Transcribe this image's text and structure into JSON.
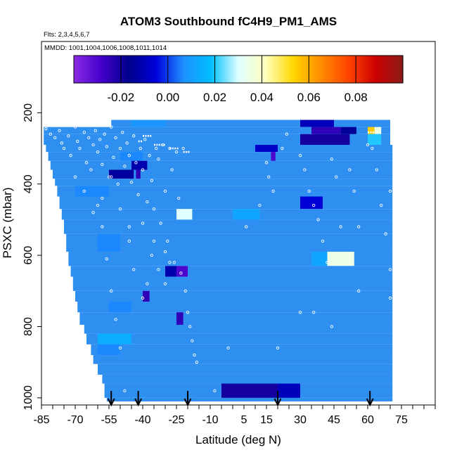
{
  "chart_data": {
    "type": "heatmap",
    "title": "ATOM3 Southbound fC4H9_PM1_AMS",
    "flights_label": "Flts: 2,3,4,5,6,7",
    "dates_label": "MMDD: 1001,1004,1006,1008,1011,1014",
    "xlabel": "Latitude (deg N)",
    "ylabel": "PSXC (mbar)",
    "xlim": [
      -85,
      90
    ],
    "ylim": [
      1020,
      0
    ],
    "x_ticks": [
      -85,
      -70,
      -55,
      -40,
      -25,
      -10,
      5,
      15,
      30,
      45,
      60,
      75
    ],
    "y_ticks": [
      200,
      400,
      600,
      800,
      1000
    ],
    "colorbar": {
      "range": [
        -0.04,
        0.1
      ],
      "ticks": [
        -0.02,
        0.0,
        0.02,
        0.04,
        0.06,
        0.08
      ],
      "tick_labels": [
        "-0.02",
        "0.00",
        "0.02",
        "0.04",
        "0.06",
        "0.08"
      ],
      "colors": [
        "#8a2be2",
        "#4400cc",
        "#00008b",
        "#0000dd",
        "#1e90ff",
        "#00bfff",
        "#e0ffff",
        "#ffffbf",
        "#ffd700",
        "#ff8c00",
        "#ff4500",
        "#cc0000",
        "#8b1a1a"
      ]
    },
    "base_color": "#2e8ff0",
    "layers": [
      {
        "p_top": 220,
        "p_bot": 240,
        "lat_min": -54,
        "lat_max": 70,
        "anomalies": [
          {
            "lat0": -45,
            "lat1": -30,
            "value": 0.008
          },
          {
            "lat0": 30,
            "lat1": 45,
            "value": -0.01
          }
        ]
      },
      {
        "p_top": 240,
        "p_bot": 260,
        "lat_min": -84,
        "lat_max": 70,
        "anomalies": [
          {
            "lat0": 35,
            "lat1": 48,
            "value": -0.025
          },
          {
            "lat0": 48,
            "lat1": 55,
            "value": -0.015
          },
          {
            "lat0": 60,
            "lat1": 63,
            "value": 0.055
          },
          {
            "lat0": 63,
            "lat1": 66,
            "value": 0.035
          }
        ]
      },
      {
        "p_top": 260,
        "p_bot": 290,
        "lat_min": -84,
        "lat_max": 70,
        "anomalies": [
          {
            "lat0": 30,
            "lat1": 52,
            "value": -0.02
          },
          {
            "lat0": 60,
            "lat1": 66,
            "value": 0.02
          }
        ]
      },
      {
        "p_top": 290,
        "p_bot": 310,
        "lat_min": -83,
        "lat_max": 71,
        "anomalies": [
          {
            "lat0": 10,
            "lat1": 20,
            "value": -0.008
          }
        ]
      },
      {
        "p_top": 310,
        "p_bot": 335,
        "lat_min": -82,
        "lat_max": 71,
        "anomalies": [
          {
            "lat0": 17,
            "lat1": 19,
            "value": -0.03
          },
          {
            "lat0": -50,
            "lat1": -40,
            "value": 0.006
          }
        ]
      },
      {
        "p_top": 335,
        "p_bot": 360,
        "lat_min": -81,
        "lat_max": 71,
        "anomalies": [
          {
            "lat0": -45,
            "lat1": -38,
            "value": -0.012
          }
        ]
      },
      {
        "p_top": 360,
        "p_bot": 385,
        "lat_min": -80,
        "lat_max": 71,
        "anomalies": [
          {
            "lat0": -55,
            "lat1": -44,
            "value": -0.014
          },
          {
            "lat0": -43,
            "lat1": -41,
            "value": -0.025
          }
        ]
      },
      {
        "p_top": 385,
        "p_bot": 405,
        "lat_min": -79,
        "lat_max": 71,
        "anomalies": []
      },
      {
        "p_top": 405,
        "p_bot": 435,
        "lat_min": -78,
        "lat_max": 71,
        "anomalies": [
          {
            "lat0": -70,
            "lat1": -55,
            "value": 0.006
          }
        ]
      },
      {
        "p_top": 435,
        "p_bot": 470,
        "lat_min": -77,
        "lat_max": 71,
        "anomalies": [
          {
            "lat0": 30,
            "lat1": 40,
            "value": -0.006
          }
        ]
      },
      {
        "p_top": 470,
        "p_bot": 500,
        "lat_min": -76,
        "lat_max": 71,
        "anomalies": [
          {
            "lat0": -25,
            "lat1": -18,
            "value": 0.03
          },
          {
            "lat0": 0,
            "lat1": 12,
            "value": 0.012
          }
        ]
      },
      {
        "p_top": 500,
        "p_bot": 540,
        "lat_min": -75,
        "lat_max": 71,
        "anomalies": []
      },
      {
        "p_top": 540,
        "p_bot": 590,
        "lat_min": -74,
        "lat_max": 71,
        "anomalies": [
          {
            "lat0": -60,
            "lat1": -50,
            "value": 0.006
          }
        ]
      },
      {
        "p_top": 590,
        "p_bot": 630,
        "lat_min": -73,
        "lat_max": 71,
        "anomalies": [
          {
            "lat0": 42,
            "lat1": 54,
            "value": 0.035
          },
          {
            "lat0": 35,
            "lat1": 42,
            "value": 0.012
          }
        ]
      },
      {
        "p_top": 630,
        "p_bot": 660,
        "lat_min": -72,
        "lat_max": 71,
        "anomalies": [
          {
            "lat0": -25,
            "lat1": -20,
            "value": -0.03
          },
          {
            "lat0": -30,
            "lat1": -25,
            "value": -0.012
          }
        ]
      },
      {
        "p_top": 660,
        "p_bot": 700,
        "lat_min": -71,
        "lat_max": 71,
        "anomalies": []
      },
      {
        "p_top": 700,
        "p_bot": 730,
        "lat_min": -70,
        "lat_max": 71,
        "anomalies": [
          {
            "lat0": -40,
            "lat1": -37,
            "value": -0.025
          }
        ]
      },
      {
        "p_top": 730,
        "p_bot": 760,
        "lat_min": -69,
        "lat_max": 71,
        "anomalies": [
          {
            "lat0": -55,
            "lat1": -45,
            "value": 0.006
          }
        ]
      },
      {
        "p_top": 760,
        "p_bot": 795,
        "lat_min": -68,
        "lat_max": 71,
        "anomalies": [
          {
            "lat0": -25,
            "lat1": -22,
            "value": -0.025
          }
        ]
      },
      {
        "p_top": 795,
        "p_bot": 820,
        "lat_min": -66,
        "lat_max": 71,
        "anomalies": []
      },
      {
        "p_top": 820,
        "p_bot": 850,
        "lat_min": -65,
        "lat_max": 71,
        "anomalies": [
          {
            "lat0": -60,
            "lat1": -45,
            "value": 0.014
          }
        ]
      },
      {
        "p_top": 850,
        "p_bot": 880,
        "lat_min": -63,
        "lat_max": 71,
        "anomalies": [
          {
            "lat0": -60,
            "lat1": -50,
            "value": 0.006
          }
        ]
      },
      {
        "p_top": 880,
        "p_bot": 905,
        "lat_min": -62,
        "lat_max": 71,
        "anomalies": []
      },
      {
        "p_top": 905,
        "p_bot": 935,
        "lat_min": -60,
        "lat_max": 71,
        "anomalies": []
      },
      {
        "p_top": 935,
        "p_bot": 960,
        "lat_min": -58,
        "lat_max": 71,
        "anomalies": []
      },
      {
        "p_top": 960,
        "p_bot": 1000,
        "lat_min": -57,
        "lat_max": 71,
        "anomalies": [
          {
            "lat0": -5,
            "lat1": 20,
            "value": -0.02
          },
          {
            "lat0": 20,
            "lat1": 30,
            "value": -0.01
          }
        ]
      },
      {
        "p_top": 1000,
        "p_bot": 1010,
        "lat_min": -56,
        "lat_max": 71,
        "anomalies": []
      }
    ],
    "arrows_lat": [
      -54,
      -42,
      -20,
      20,
      61
    ],
    "points": [
      [
        -83,
        245
      ],
      [
        -81,
        260
      ],
      [
        -79,
        270
      ],
      [
        -77,
        250
      ],
      [
        -76,
        285
      ],
      [
        -75,
        300
      ],
      [
        -73,
        265
      ],
      [
        -72,
        320
      ],
      [
        -70,
        240
      ],
      [
        -69,
        280
      ],
      [
        -68,
        300
      ],
      [
        -66,
        255
      ],
      [
        -65,
        340
      ],
      [
        -64,
        270
      ],
      [
        -63,
        360
      ],
      [
        -62,
        290
      ],
      [
        -61,
        250
      ],
      [
        -60,
        310
      ],
      [
        -59,
        275
      ],
      [
        -58,
        345
      ],
      [
        -57,
        260
      ],
      [
        -56,
        295
      ],
      [
        -55,
        380
      ],
      [
        -54,
        240
      ],
      [
        -53,
        325
      ],
      [
        -52,
        270
      ],
      [
        -51,
        400
      ],
      [
        -50,
        300
      ],
      [
        -49,
        255
      ],
      [
        -48,
        350
      ],
      [
        -47,
        285
      ],
      [
        -46,
        320
      ],
      [
        -45,
        395
      ],
      [
        -44,
        265
      ],
      [
        -43,
        340
      ],
      [
        -42,
        430
      ],
      [
        -41,
        300
      ],
      [
        -40,
        360
      ],
      [
        -39,
        275
      ],
      [
        -38,
        450
      ],
      [
        -37,
        320
      ],
      [
        -36,
        390
      ],
      [
        -35,
        470
      ],
      [
        -34,
        300
      ],
      [
        -33,
        330
      ],
      [
        -32,
        510
      ],
      [
        -31,
        290
      ],
      [
        -30,
        420
      ],
      [
        -29,
        560
      ],
      [
        -28,
        300
      ],
      [
        -27,
        360
      ],
      [
        -26,
        620
      ],
      [
        -25,
        310
      ],
      [
        -24,
        440
      ],
      [
        -23,
        650
      ],
      [
        -22,
        300
      ],
      [
        -21,
        700
      ],
      [
        -20,
        760
      ],
      [
        -19,
        800
      ],
      [
        -18,
        840
      ],
      [
        -17,
        880
      ],
      [
        -16,
        900
      ],
      [
        -15,
        190
      ],
      [
        -60,
        460
      ],
      [
        -58,
        520
      ],
      [
        -56,
        610
      ],
      [
        -54,
        700
      ],
      [
        -52,
        780
      ],
      [
        -50,
        860
      ],
      [
        -46,
        560
      ],
      [
        -44,
        640
      ],
      [
        -40,
        720
      ],
      [
        -36,
        600
      ],
      [
        -30,
        680
      ],
      [
        -70,
        380
      ],
      [
        -66,
        420
      ],
      [
        -62,
        480
      ],
      [
        -58,
        440
      ],
      [
        -54,
        380
      ],
      [
        -50,
        470
      ],
      [
        -46,
        520
      ],
      [
        -40,
        510
      ],
      [
        -35,
        560
      ],
      [
        -30,
        590
      ],
      [
        -28,
        620
      ],
      [
        -33,
        640
      ],
      [
        -38,
        680
      ],
      [
        14,
        200
      ],
      [
        15,
        340
      ],
      [
        16,
        380
      ],
      [
        18,
        420
      ],
      [
        22,
        300
      ],
      [
        24,
        260
      ],
      [
        30,
        320
      ],
      [
        32,
        360
      ],
      [
        34,
        420
      ],
      [
        36,
        460
      ],
      [
        38,
        500
      ],
      [
        40,
        560
      ],
      [
        42,
        620
      ],
      [
        44,
        330
      ],
      [
        46,
        380
      ],
      [
        48,
        520
      ],
      [
        50,
        600
      ],
      [
        52,
        360
      ],
      [
        54,
        420
      ],
      [
        56,
        520
      ],
      [
        60,
        290
      ],
      [
        62,
        300
      ],
      [
        64,
        360
      ],
      [
        66,
        460
      ],
      [
        68,
        540
      ],
      [
        70,
        420
      ],
      [
        70,
        640
      ],
      [
        70,
        720
      ],
      [
        36,
        760
      ],
      [
        44,
        800
      ],
      [
        20,
        860
      ],
      [
        -2,
        860
      ],
      [
        12,
        460
      ],
      [
        -48,
        980
      ],
      [
        -8,
        980
      ],
      [
        6,
        520
      ],
      [
        30,
        760
      ],
      [
        56,
        700
      ]
    ],
    "dash_marks": [
      [
        -83,
        -78,
        225
      ],
      [
        -74,
        -66,
        225
      ],
      [
        -61,
        -57,
        230
      ],
      [
        -59,
        -54,
        235
      ],
      [
        -40,
        -36,
        265
      ],
      [
        -35,
        -30,
        290
      ],
      [
        -22,
        -19,
        310
      ],
      [
        -16,
        -14,
        190
      ],
      [
        -42,
        -40,
        280
      ],
      [
        -28,
        -24,
        300
      ],
      [
        28,
        31,
        200
      ],
      [
        66,
        70,
        200
      ],
      [
        60,
        63,
        255
      ]
    ]
  }
}
